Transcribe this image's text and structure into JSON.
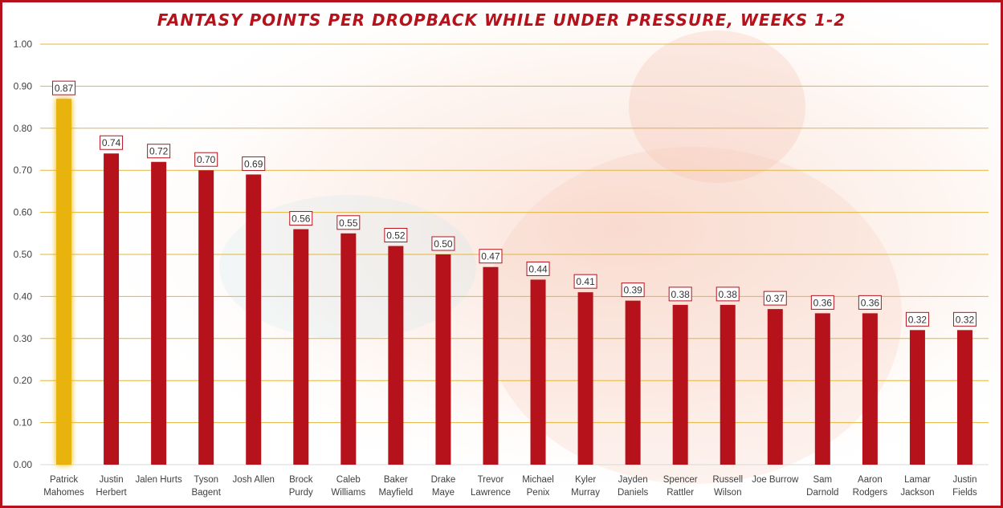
{
  "chart_data": {
    "type": "bar",
    "title": "FANTASY POINTS PER DROPBACK WHILE UNDER PRESSURE, WEEKS 1-2",
    "xlabel": "",
    "ylabel": "",
    "ylim": [
      0,
      1.0
    ],
    "yticks": [
      "0.00",
      "0.10",
      "0.20",
      "0.30",
      "0.40",
      "0.50",
      "0.60",
      "0.70",
      "0.80",
      "0.90",
      "1.00"
    ],
    "grid": true,
    "categories": [
      [
        "Patrick",
        "Mahomes"
      ],
      [
        "Justin",
        "Herbert"
      ],
      [
        "Jalen Hurts"
      ],
      [
        "Tyson",
        "Bagent"
      ],
      [
        "Josh Allen"
      ],
      [
        "Brock",
        "Purdy"
      ],
      [
        "Caleb",
        "Williams"
      ],
      [
        "Baker",
        "Mayfield"
      ],
      [
        "Drake",
        "Maye"
      ],
      [
        "Trevor",
        "Lawrence"
      ],
      [
        "Michael",
        "Penix"
      ],
      [
        "Kyler",
        "Murray"
      ],
      [
        "Jayden",
        "Daniels"
      ],
      [
        "Spencer",
        "Rattler"
      ],
      [
        "Russell",
        "Wilson"
      ],
      [
        "Joe Burrow"
      ],
      [
        "Sam",
        "Darnold"
      ],
      [
        "Aaron",
        "Rodgers"
      ],
      [
        "Lamar",
        "Jackson"
      ],
      [
        "Justin",
        "Fields"
      ]
    ],
    "values": [
      0.87,
      0.74,
      0.72,
      0.7,
      0.69,
      0.56,
      0.55,
      0.52,
      0.5,
      0.47,
      0.44,
      0.41,
      0.39,
      0.38,
      0.38,
      0.37,
      0.36,
      0.36,
      0.32,
      0.32
    ],
    "data_labels": [
      "0.87",
      "0.74",
      "0.72",
      "0.70",
      "0.69",
      "0.56",
      "0.55",
      "0.52",
      "0.50",
      "0.47",
      "0.44",
      "0.41",
      "0.39",
      "0.38",
      "0.38",
      "0.37",
      "0.36",
      "0.36",
      "0.32",
      "0.32"
    ],
    "highlight_index": 0,
    "colors": {
      "bar": "#b5121b",
      "highlight": "#e8b311",
      "grid": "#e3b53a",
      "label_border": "#b5121b",
      "title": "#b5121b"
    }
  }
}
